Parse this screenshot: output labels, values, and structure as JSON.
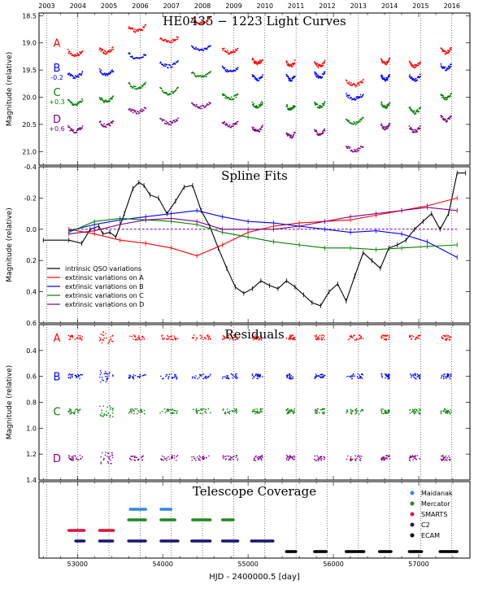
{
  "chart_data": [
    {
      "type": "scatter",
      "title": "HE0435 − 1223 Light Curves",
      "ylabel": "Magnitude (relative)",
      "ylim": [
        21.25,
        18.45
      ],
      "yticks": [
        18.5,
        19.0,
        19.5,
        20.0,
        20.5,
        21.0
      ],
      "top_axis_years": [
        "2003",
        "2004",
        "2005",
        "2006",
        "2007",
        "2008",
        "2009",
        "2010",
        "2011",
        "2012",
        "2013",
        "2014",
        "2015",
        "2016"
      ],
      "series": [
        {
          "name": "A",
          "offset_label": "",
          "color": "#ff0000"
        },
        {
          "name": "B",
          "offset_label": "-0.2",
          "color": "#0000ff"
        },
        {
          "name": "C",
          "offset_label": "+0.3",
          "color": "#008000"
        },
        {
          "name": "D",
          "offset_label": "+0.6",
          "color": "#800080"
        }
      ],
      "seasons": [
        {
          "x": [
            52890,
            53060
          ],
          "A": 19.15,
          "B": 19.55,
          "C": 20.05,
          "D": 20.55
        },
        {
          "x": [
            53260,
            53420
          ],
          "A": 19.1,
          "B": 19.5,
          "C": 20.0,
          "D": 20.45
        },
        {
          "x": [
            53600,
            53800
          ],
          "A": 18.7,
          "B": 19.2,
          "C": 19.75,
          "D": 20.2
        },
        {
          "x": [
            53970,
            54180
          ],
          "A": 18.9,
          "B": 19.35,
          "C": 19.85,
          "D": 20.4
        },
        {
          "x": [
            54340,
            54560
          ],
          "A": 18.55,
          "B": 19.05,
          "C": 19.55,
          "D": 20.1
        },
        {
          "x": [
            54700,
            54880
          ],
          "A": 19.1,
          "B": 19.45,
          "C": 19.95,
          "D": 20.45
        },
        {
          "x": [
            55050,
            55170
          ],
          "A": 19.3,
          "B": 19.6,
          "C": 20.1,
          "D": 20.55
        },
        {
          "x": [
            55450,
            55550
          ],
          "A": 19.35,
          "B": 19.6,
          "C": 20.15,
          "D": 20.65
        },
        {
          "x": [
            55780,
            55900
          ],
          "A": 19.35,
          "B": 19.55,
          "C": 20.1,
          "D": 20.6
        },
        {
          "x": [
            56150,
            56350
          ],
          "A": 19.7,
          "B": 19.95,
          "C": 20.4,
          "D": 20.9
        },
        {
          "x": [
            56560,
            56660
          ],
          "A": 19.3,
          "B": 19.6,
          "C": 20.1,
          "D": 20.5
        },
        {
          "x": [
            56890,
            57020
          ],
          "A": 19.35,
          "B": 19.6,
          "C": 20.2,
          "D": 20.55
        },
        {
          "x": [
            57260,
            57380
          ],
          "A": 19.1,
          "B": 19.4,
          "C": 19.95,
          "D": 20.35
        }
      ]
    },
    {
      "type": "line",
      "title": "Spline Fits",
      "ylabel": "Magnitude (relative)",
      "ylim": [
        0.6,
        -0.4
      ],
      "yticks": [
        -0.4,
        -0.2,
        0.0,
        0.2,
        0.4,
        0.6
      ],
      "legend_position": "bottom-left",
      "series": [
        {
          "name": "intrinsic QSO variations",
          "color": "#000000",
          "x": [
            52600,
            52900,
            53050,
            53150,
            53250,
            53300,
            53380,
            53450,
            53550,
            53650,
            53720,
            53780,
            53850,
            53950,
            54050,
            54150,
            54250,
            54350,
            54450,
            54550,
            54650,
            54750,
            54850,
            54950,
            55050,
            55150,
            55250,
            55350,
            55450,
            55550,
            55650,
            55750,
            55850,
            55950,
            56050,
            56150,
            56250,
            56350,
            56450,
            56550,
            56650,
            56750,
            56850,
            56950,
            57050,
            57150,
            57250,
            57350,
            57450,
            57550
          ],
          "y": [
            0.07,
            0.07,
            0.09,
            0.0,
            -0.02,
            0.03,
            0.02,
            0.05,
            -0.1,
            -0.26,
            -0.3,
            -0.28,
            -0.22,
            -0.2,
            -0.1,
            -0.18,
            -0.27,
            -0.28,
            -0.12,
            -0.02,
            0.12,
            0.25,
            0.37,
            0.41,
            0.38,
            0.33,
            0.36,
            0.38,
            0.33,
            0.37,
            0.42,
            0.47,
            0.49,
            0.4,
            0.35,
            0.46,
            0.3,
            0.15,
            0.2,
            0.25,
            0.12,
            0.1,
            0.07,
            0.0,
            -0.05,
            -0.1,
            0.0,
            -0.1,
            -0.36,
            -0.36
          ]
        },
        {
          "name": "extrinsic variations on A",
          "color": "#ff0000",
          "x": [
            52900,
            53200,
            53500,
            53800,
            54100,
            54400,
            54700,
            55000,
            55300,
            55600,
            55900,
            56200,
            56500,
            56800,
            57100,
            57450
          ],
          "y": [
            0.0,
            0.03,
            0.07,
            0.09,
            0.12,
            0.17,
            0.1,
            0.02,
            -0.02,
            -0.04,
            -0.05,
            -0.06,
            -0.09,
            -0.12,
            -0.15,
            -0.2
          ]
        },
        {
          "name": "extrinsic variations on B",
          "color": "#0000ff",
          "x": [
            52900,
            53200,
            53500,
            53800,
            54100,
            54400,
            54700,
            55000,
            55300,
            55600,
            55900,
            56200,
            56500,
            56800,
            57100,
            57450
          ],
          "y": [
            0.01,
            -0.03,
            -0.06,
            -0.08,
            -0.1,
            -0.12,
            -0.08,
            -0.05,
            -0.04,
            -0.02,
            0.0,
            0.02,
            0.01,
            0.03,
            0.08,
            0.18
          ]
        },
        {
          "name": "extrinsic variations on C",
          "color": "#008000",
          "x": [
            52900,
            53200,
            53500,
            53800,
            54100,
            54400,
            54700,
            55000,
            55300,
            55600,
            55900,
            56200,
            56500,
            56800,
            57100,
            57450
          ],
          "y": [
            0.02,
            -0.05,
            -0.07,
            -0.06,
            -0.05,
            -0.03,
            0.02,
            0.05,
            0.08,
            0.1,
            0.12,
            0.12,
            0.13,
            0.12,
            0.11,
            0.1
          ]
        },
        {
          "name": "extrinsic variations on D",
          "color": "#800080",
          "x": [
            52900,
            53200,
            53500,
            53800,
            54100,
            54400,
            54700,
            55000,
            55300,
            55600,
            55900,
            56200,
            56500,
            56800,
            57100,
            57450
          ],
          "y": [
            0.03,
            0.01,
            -0.03,
            -0.06,
            -0.07,
            -0.05,
            0.0,
            0.0,
            0.0,
            -0.02,
            -0.05,
            -0.08,
            -0.1,
            -0.12,
            -0.14,
            -0.12
          ]
        }
      ]
    },
    {
      "type": "scatter",
      "title": "Residuals",
      "ylabel": "Magnitude (relative)",
      "ylim": [
        1.4,
        0.2
      ],
      "yticks": [
        0.4,
        0.6,
        0.8,
        1.0,
        1.2,
        1.4
      ],
      "series": [
        {
          "name": "A",
          "level": 0.3,
          "color": "#ff0000"
        },
        {
          "name": "B",
          "level": 0.6,
          "color": "#0000ff"
        },
        {
          "name": "C",
          "level": 0.87,
          "color": "#008000"
        },
        {
          "name": "D",
          "level": 1.23,
          "color": "#800080"
        }
      ]
    },
    {
      "type": "scatter",
      "title": "Telescope Coverage",
      "xlabel": "HJD - 2400000.5 [day]",
      "xlim": [
        52550,
        57600
      ],
      "xticks": [
        53000,
        54000,
        55000,
        56000,
        57000
      ],
      "xtick_labels": [
        "53000",
        "54000",
        "55000",
        "56000",
        "57000"
      ],
      "legend_position": "top-right",
      "series": [
        {
          "name": "Maidanak",
          "color": "#3388ee",
          "row": 5,
          "seasons": [
            [
              53620,
              53800
            ],
            [
              53980,
              54100
            ]
          ]
        },
        {
          "name": "Mercator",
          "color": "#228b22",
          "row": 4,
          "seasons": [
            [
              53600,
              53800
            ],
            [
              53980,
              54150
            ],
            [
              54350,
              54560
            ],
            [
              54700,
              54830
            ]
          ]
        },
        {
          "name": "SMARTS",
          "color": "#dc143c",
          "row": 3,
          "seasons": [
            [
              52900,
              53080
            ],
            [
              53260,
              53430
            ]
          ]
        },
        {
          "name": "C2",
          "color": "#191970",
          "row": 2,
          "seasons": [
            [
              52980,
              53080
            ],
            [
              53260,
              53420
            ],
            [
              53600,
              53800
            ],
            [
              53980,
              54180
            ],
            [
              54340,
              54560
            ],
            [
              54700,
              54880
            ],
            [
              55040,
              55300
            ]
          ]
        },
        {
          "name": "ECAM",
          "color": "#000000",
          "row": 1,
          "seasons": [
            [
              55450,
              55560
            ],
            [
              55780,
              55920
            ],
            [
              56150,
              56360
            ],
            [
              56540,
              56680
            ],
            [
              56890,
              57040
            ],
            [
              57250,
              57450
            ]
          ]
        }
      ]
    }
  ]
}
